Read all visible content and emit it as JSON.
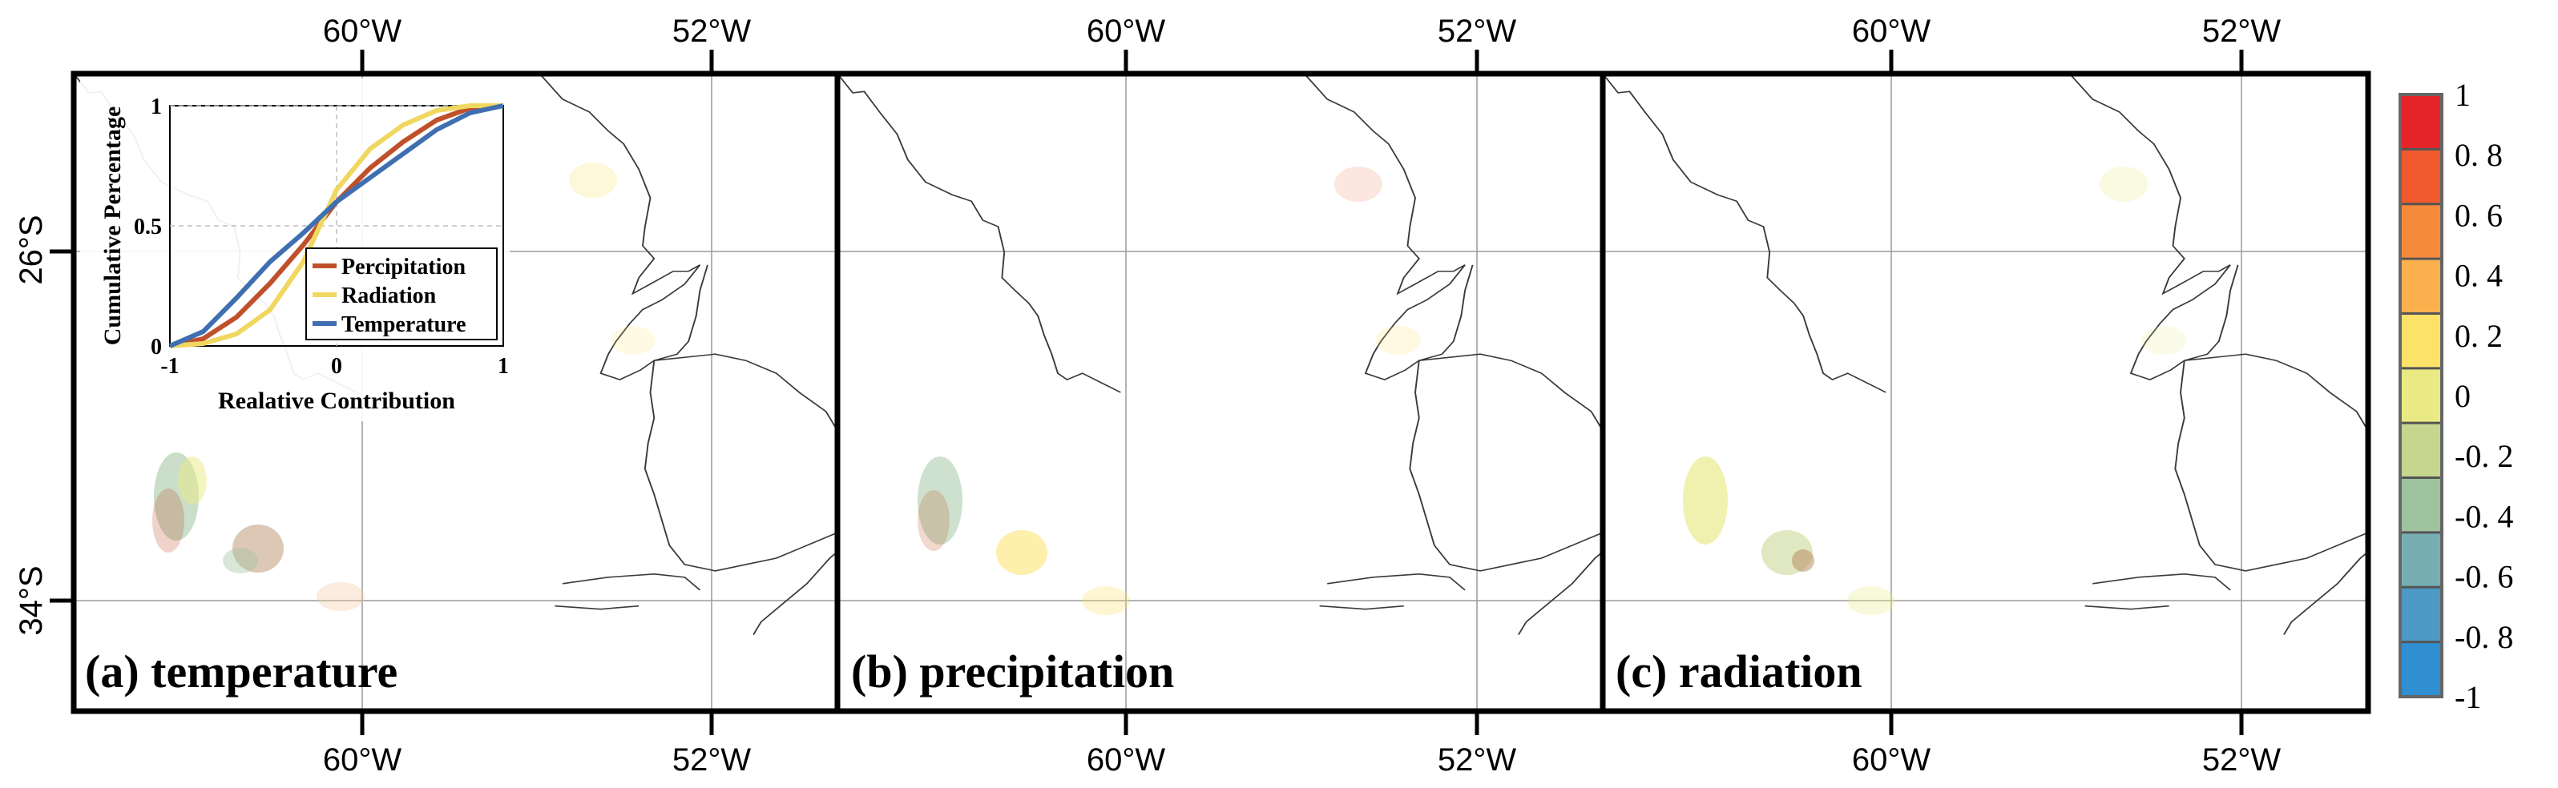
{
  "lon_labels": [
    "60°W",
    "52°W"
  ],
  "lat_labels": [
    "26°S",
    "34°S"
  ],
  "panels": [
    {
      "label": "(a) temperature"
    },
    {
      "label": "(b) precipitation"
    },
    {
      "label": "(c) radiation"
    }
  ],
  "colorbar": {
    "ticks": [
      "1",
      "0. 8",
      "0. 6",
      "0. 4",
      "0. 2",
      "0",
      "-0. 2",
      "-0. 4",
      "-0. 6",
      "-0. 8",
      "-1"
    ],
    "colors": [
      "#e5242a",
      "#f05a2d",
      "#f58a3c",
      "#fbb04d",
      "#fde26a",
      "#e9ea84",
      "#c6d68e",
      "#9ec39e",
      "#76aeb2",
      "#4d99c6",
      "#2f8fd0"
    ]
  },
  "inset_chart": {
    "chart_data": {
      "type": "line",
      "xlabel": "Realative Contribution",
      "ylabel": "Cumulative Percentage",
      "xlim": [
        -1,
        1
      ],
      "ylim": [
        0,
        1
      ],
      "xticks": [
        "-1",
        "0",
        "1"
      ],
      "yticks": [
        "0",
        "0.5",
        "1"
      ],
      "series": [
        {
          "name": "Percipitation",
          "color": "#c0502a",
          "x": [
            -1,
            -0.8,
            -0.6,
            -0.4,
            -0.2,
            0,
            0.2,
            0.4,
            0.6,
            0.8,
            1
          ],
          "y": [
            0,
            0.03,
            0.12,
            0.26,
            0.42,
            0.6,
            0.74,
            0.85,
            0.94,
            0.99,
            1
          ]
        },
        {
          "name": "Radiation",
          "color": "#f0d860",
          "x": [
            -1,
            -0.8,
            -0.6,
            -0.4,
            -0.2,
            0,
            0.2,
            0.4,
            0.6,
            0.8,
            1
          ],
          "y": [
            0,
            0.01,
            0.05,
            0.15,
            0.35,
            0.65,
            0.82,
            0.92,
            0.98,
            1,
            1
          ]
        },
        {
          "name": "Temperature",
          "color": "#3f6fb0",
          "x": [
            -1,
            -0.8,
            -0.6,
            -0.4,
            -0.2,
            0,
            0.2,
            0.4,
            0.6,
            0.8,
            1
          ],
          "y": [
            0,
            0.06,
            0.2,
            0.35,
            0.47,
            0.6,
            0.7,
            0.8,
            0.9,
            0.97,
            1
          ]
        }
      ]
    }
  }
}
